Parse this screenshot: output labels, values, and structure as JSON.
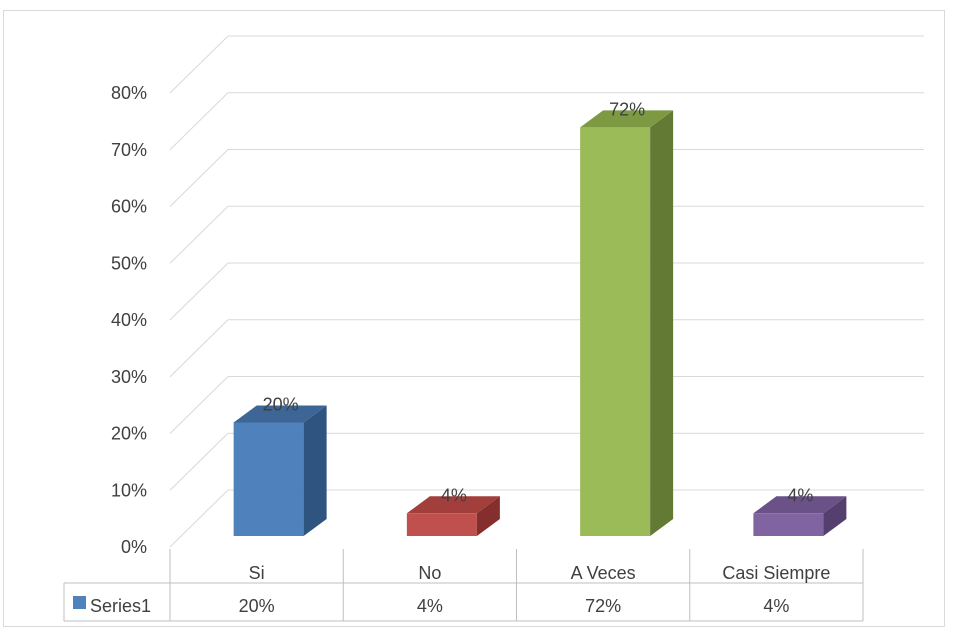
{
  "chart_data": {
    "type": "bar",
    "categories": [
      "Si",
      "No",
      "A Veces",
      "Casi Siempre"
    ],
    "series": [
      {
        "name": "Series1",
        "values": [
          0.2,
          0.04,
          0.72,
          0.04
        ],
        "labels": [
          "20%",
          "4%",
          "72%",
          "4%"
        ]
      }
    ],
    "bar_colors": [
      {
        "front": "#4f81bd",
        "side": "#2f5480",
        "top": "#3d6595"
      },
      {
        "front": "#c0504d",
        "side": "#842f2d",
        "top": "#a23f3c"
      },
      {
        "front": "#9bbb59",
        "side": "#637a35",
        "top": "#7d9a43"
      },
      {
        "front": "#8064a2",
        "side": "#553f6f",
        "top": "#6a5188"
      }
    ],
    "y_ticks": [
      "0%",
      "10%",
      "20%",
      "30%",
      "40%",
      "50%",
      "60%",
      "70%",
      "80%"
    ],
    "ylim": [
      0,
      0.8
    ],
    "grid": true,
    "legend_key": "Series1",
    "data_table": true,
    "style": "3d-column"
  }
}
